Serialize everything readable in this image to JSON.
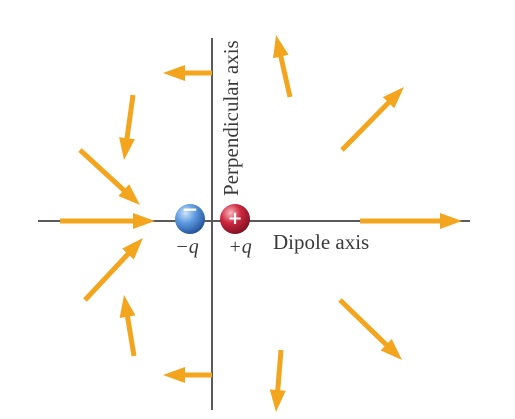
{
  "labels": {
    "perpendicular_axis": "Perpendicular axis",
    "dipole_axis": "Dipole axis",
    "negative_charge": "−q",
    "positive_charge": "+q",
    "negative_sign": "−",
    "positive_sign": "+"
  },
  "colors": {
    "arrow": "#F4A51E",
    "axis": "#5a5a5a",
    "negative_sphere": "#4A86CF",
    "positive_sphere": "#C8213A",
    "text": "#3a3a3a"
  },
  "icons": {
    "negative_charge": "blue-sphere-with-minus",
    "positive_charge": "red-sphere-with-plus",
    "field_vector": "orange-arrow"
  }
}
